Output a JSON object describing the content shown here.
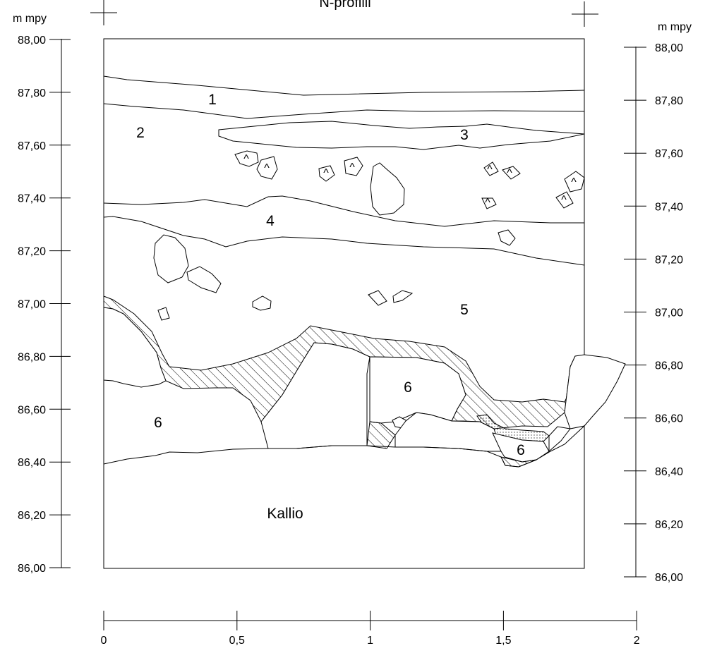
{
  "title": "N-profiili",
  "left_axis": {
    "unit": "m mpy",
    "ticks": [
      "88,00",
      "87,80",
      "87,60",
      "87,40",
      "87,20",
      "87,00",
      "86,80",
      "86,60",
      "86,40",
      "86,20",
      "86,00"
    ]
  },
  "right_axis": {
    "unit": "m mpy",
    "ticks": [
      "88,00",
      "87,80",
      "87,60",
      "87,40",
      "87,20",
      "87,00",
      "86,80",
      "86,60",
      "86,40",
      "86,20",
      "86,00"
    ]
  },
  "bottom_axis": {
    "ticks": [
      "0",
      "0,5",
      "1",
      "1,5",
      "2"
    ]
  },
  "layers": {
    "l1": "1",
    "l2": "2",
    "l3": "3",
    "l4": "4",
    "l5": "5",
    "l6a": "6",
    "l6b": "6",
    "l6c": "6",
    "bedrock": "Kallio"
  },
  "stone_mark": "^",
  "colors": {
    "ink": "#000000",
    "background": "#ffffff"
  }
}
